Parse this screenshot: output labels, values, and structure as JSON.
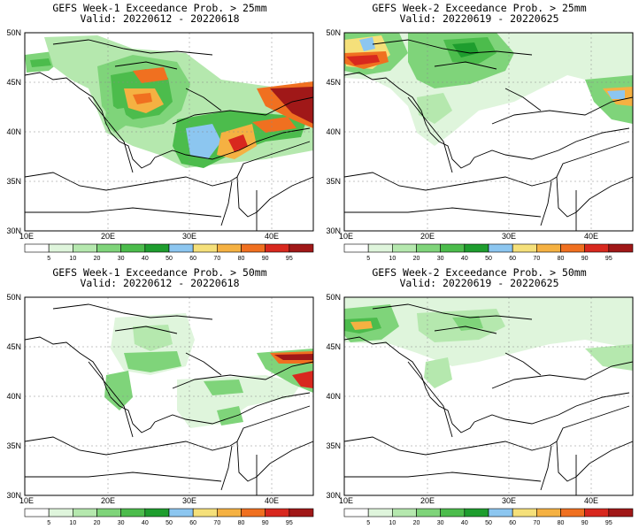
{
  "panels": [
    {
      "title": "GEFS Week-1 Exceedance Prob. > 25mm",
      "valid": "Valid: 20220612 - 20220618"
    },
    {
      "title": "GEFS Week-2 Exceedance Prob. > 25mm",
      "valid": "Valid: 20220619 - 20220625"
    },
    {
      "title": "GEFS Week-1 Exceedance Prob. > 50mm",
      "valid": "Valid: 20220612 - 20220618"
    },
    {
      "title": "GEFS Week-2 Exceedance Prob. > 50mm",
      "valid": "Valid: 20220619 - 20220625"
    }
  ],
  "axes": {
    "x_ticks": [
      "10E",
      "20E",
      "30E",
      "40E"
    ],
    "y_ticks": [
      "50N",
      "45N",
      "40N",
      "35N",
      "30N"
    ]
  },
  "colorbar": {
    "labels": [
      "5",
      "10",
      "20",
      "30",
      "40",
      "50",
      "60",
      "70",
      "80",
      "90",
      "95"
    ],
    "colors": [
      "#ffffff",
      "#dff5dc",
      "#b5e8ae",
      "#7fd47a",
      "#4cbc4c",
      "#1e9d2e",
      "#8cc6f0",
      "#f5e07a",
      "#f5b142",
      "#f07020",
      "#d8281e",
      "#a01818"
    ]
  }
}
